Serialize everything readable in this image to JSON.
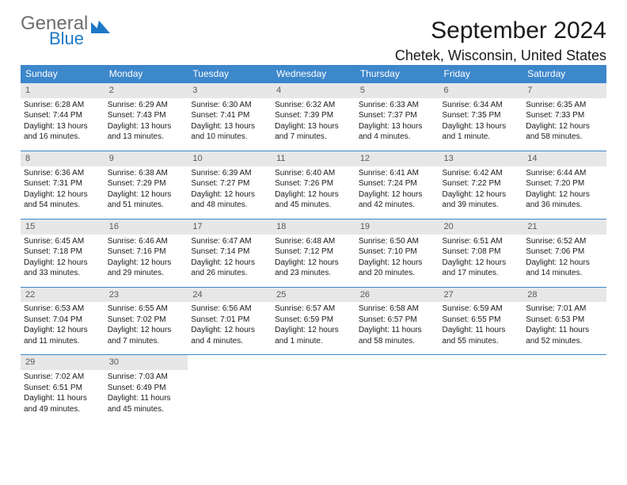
{
  "brand": {
    "general": "General",
    "blue": "Blue"
  },
  "header": {
    "title": "September 2024",
    "location": "Chetek, Wisconsin, United States"
  },
  "colors": {
    "header_bg": "#3d87cb",
    "header_text": "#ffffff",
    "daynum_bg": "#e7e7e7",
    "daynum_text": "#5a5a5a",
    "cell_border": "#3d87cb",
    "body_text": "#1a1a1a",
    "logo_gray": "#6e6e6e",
    "logo_blue": "#1d78c5",
    "background": "#ffffff"
  },
  "typography": {
    "title_fontsize": 30,
    "location_fontsize": 18,
    "dayheader_fontsize": 12,
    "daynum_fontsize": 11,
    "cell_fontsize": 10
  },
  "weekdays": [
    "Sunday",
    "Monday",
    "Tuesday",
    "Wednesday",
    "Thursday",
    "Friday",
    "Saturday"
  ],
  "grid": {
    "rows": 5,
    "cols": 7,
    "first_day_col": 0,
    "days_in_month": 30
  },
  "days": [
    {
      "n": 1,
      "sunrise": "6:28 AM",
      "sunset": "7:44 PM",
      "dl": "13 hours and 16 minutes."
    },
    {
      "n": 2,
      "sunrise": "6:29 AM",
      "sunset": "7:43 PM",
      "dl": "13 hours and 13 minutes."
    },
    {
      "n": 3,
      "sunrise": "6:30 AM",
      "sunset": "7:41 PM",
      "dl": "13 hours and 10 minutes."
    },
    {
      "n": 4,
      "sunrise": "6:32 AM",
      "sunset": "7:39 PM",
      "dl": "13 hours and 7 minutes."
    },
    {
      "n": 5,
      "sunrise": "6:33 AM",
      "sunset": "7:37 PM",
      "dl": "13 hours and 4 minutes."
    },
    {
      "n": 6,
      "sunrise": "6:34 AM",
      "sunset": "7:35 PM",
      "dl": "13 hours and 1 minute."
    },
    {
      "n": 7,
      "sunrise": "6:35 AM",
      "sunset": "7:33 PM",
      "dl": "12 hours and 58 minutes."
    },
    {
      "n": 8,
      "sunrise": "6:36 AM",
      "sunset": "7:31 PM",
      "dl": "12 hours and 54 minutes."
    },
    {
      "n": 9,
      "sunrise": "6:38 AM",
      "sunset": "7:29 PM",
      "dl": "12 hours and 51 minutes."
    },
    {
      "n": 10,
      "sunrise": "6:39 AM",
      "sunset": "7:27 PM",
      "dl": "12 hours and 48 minutes."
    },
    {
      "n": 11,
      "sunrise": "6:40 AM",
      "sunset": "7:26 PM",
      "dl": "12 hours and 45 minutes."
    },
    {
      "n": 12,
      "sunrise": "6:41 AM",
      "sunset": "7:24 PM",
      "dl": "12 hours and 42 minutes."
    },
    {
      "n": 13,
      "sunrise": "6:42 AM",
      "sunset": "7:22 PM",
      "dl": "12 hours and 39 minutes."
    },
    {
      "n": 14,
      "sunrise": "6:44 AM",
      "sunset": "7:20 PM",
      "dl": "12 hours and 36 minutes."
    },
    {
      "n": 15,
      "sunrise": "6:45 AM",
      "sunset": "7:18 PM",
      "dl": "12 hours and 33 minutes."
    },
    {
      "n": 16,
      "sunrise": "6:46 AM",
      "sunset": "7:16 PM",
      "dl": "12 hours and 29 minutes."
    },
    {
      "n": 17,
      "sunrise": "6:47 AM",
      "sunset": "7:14 PM",
      "dl": "12 hours and 26 minutes."
    },
    {
      "n": 18,
      "sunrise": "6:48 AM",
      "sunset": "7:12 PM",
      "dl": "12 hours and 23 minutes."
    },
    {
      "n": 19,
      "sunrise": "6:50 AM",
      "sunset": "7:10 PM",
      "dl": "12 hours and 20 minutes."
    },
    {
      "n": 20,
      "sunrise": "6:51 AM",
      "sunset": "7:08 PM",
      "dl": "12 hours and 17 minutes."
    },
    {
      "n": 21,
      "sunrise": "6:52 AM",
      "sunset": "7:06 PM",
      "dl": "12 hours and 14 minutes."
    },
    {
      "n": 22,
      "sunrise": "6:53 AM",
      "sunset": "7:04 PM",
      "dl": "12 hours and 11 minutes."
    },
    {
      "n": 23,
      "sunrise": "6:55 AM",
      "sunset": "7:02 PM",
      "dl": "12 hours and 7 minutes."
    },
    {
      "n": 24,
      "sunrise": "6:56 AM",
      "sunset": "7:01 PM",
      "dl": "12 hours and 4 minutes."
    },
    {
      "n": 25,
      "sunrise": "6:57 AM",
      "sunset": "6:59 PM",
      "dl": "12 hours and 1 minute."
    },
    {
      "n": 26,
      "sunrise": "6:58 AM",
      "sunset": "6:57 PM",
      "dl": "11 hours and 58 minutes."
    },
    {
      "n": 27,
      "sunrise": "6:59 AM",
      "sunset": "6:55 PM",
      "dl": "11 hours and 55 minutes."
    },
    {
      "n": 28,
      "sunrise": "7:01 AM",
      "sunset": "6:53 PM",
      "dl": "11 hours and 52 minutes."
    },
    {
      "n": 29,
      "sunrise": "7:02 AM",
      "sunset": "6:51 PM",
      "dl": "11 hours and 49 minutes."
    },
    {
      "n": 30,
      "sunrise": "7:03 AM",
      "sunset": "6:49 PM",
      "dl": "11 hours and 45 minutes."
    }
  ],
  "labels": {
    "sunrise": "Sunrise:",
    "sunset": "Sunset:",
    "daylight": "Daylight:"
  }
}
